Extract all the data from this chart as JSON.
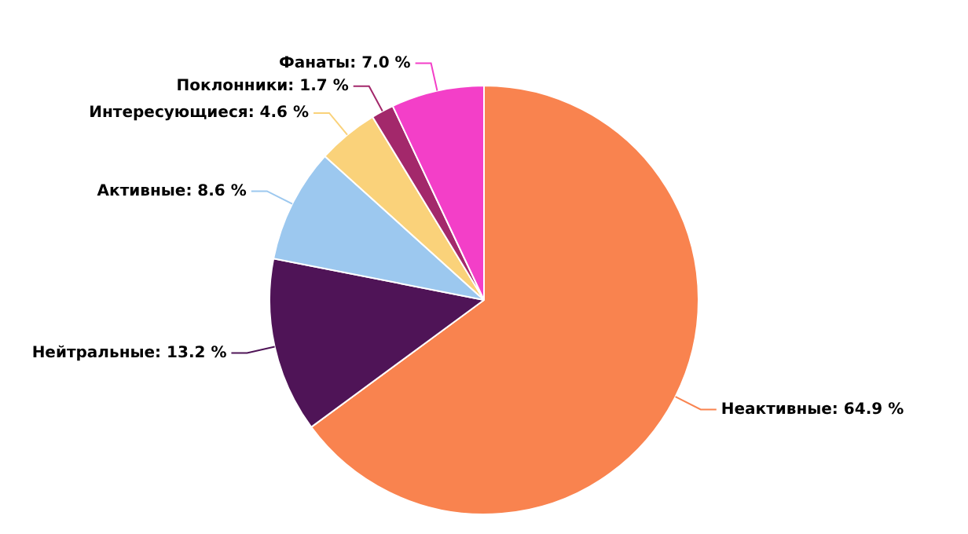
{
  "chart_data": {
    "type": "pie",
    "categories": [
      "Неактивные",
      "Нейтральные",
      "Активные",
      "Интересующиеся",
      "Поклонники",
      "Фанаты"
    ],
    "values": [
      64.9,
      13.2,
      8.6,
      4.6,
      1.7,
      7.0
    ],
    "value_labels": [
      "64.9 %",
      "13.2 %",
      "8.6 %",
      "4.6 %",
      "1.7 %",
      "7.0 %"
    ],
    "colors": [
      "#f9834f",
      "#4f1457",
      "#9cc8ef",
      "#fad27a",
      "#a3286b",
      "#f33fc8"
    ]
  }
}
